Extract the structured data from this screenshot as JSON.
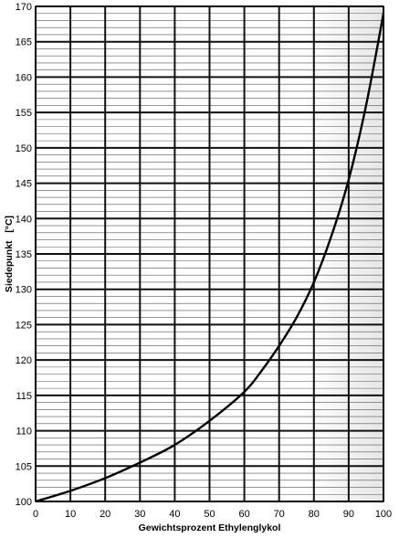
{
  "chart_data": {
    "type": "line",
    "title": "",
    "xlabel": "Gewichtsprozent Ethylenglykol",
    "ylabel": "Siedepunkt   [°C]",
    "xlim": [
      0,
      100
    ],
    "ylim": [
      100,
      170
    ],
    "x_ticks": [
      0,
      10,
      20,
      30,
      40,
      50,
      60,
      70,
      80,
      90,
      100
    ],
    "y_ticks": [
      100,
      105,
      110,
      115,
      120,
      125,
      130,
      135,
      140,
      145,
      150,
      155,
      160,
      165,
      170
    ],
    "grid": true,
    "legend": "none",
    "series": [
      {
        "x": [
          0,
          10,
          20,
          30,
          40,
          50,
          60,
          65,
          70,
          75,
          80,
          85,
          90,
          95,
          100
        ],
        "y": [
          100,
          101.5,
          103.3,
          105.5,
          108,
          111.4,
          115.5,
          118.5,
          122,
          126,
          131,
          137.5,
          145.5,
          156,
          169
        ],
        "color": "#000000"
      }
    ]
  }
}
